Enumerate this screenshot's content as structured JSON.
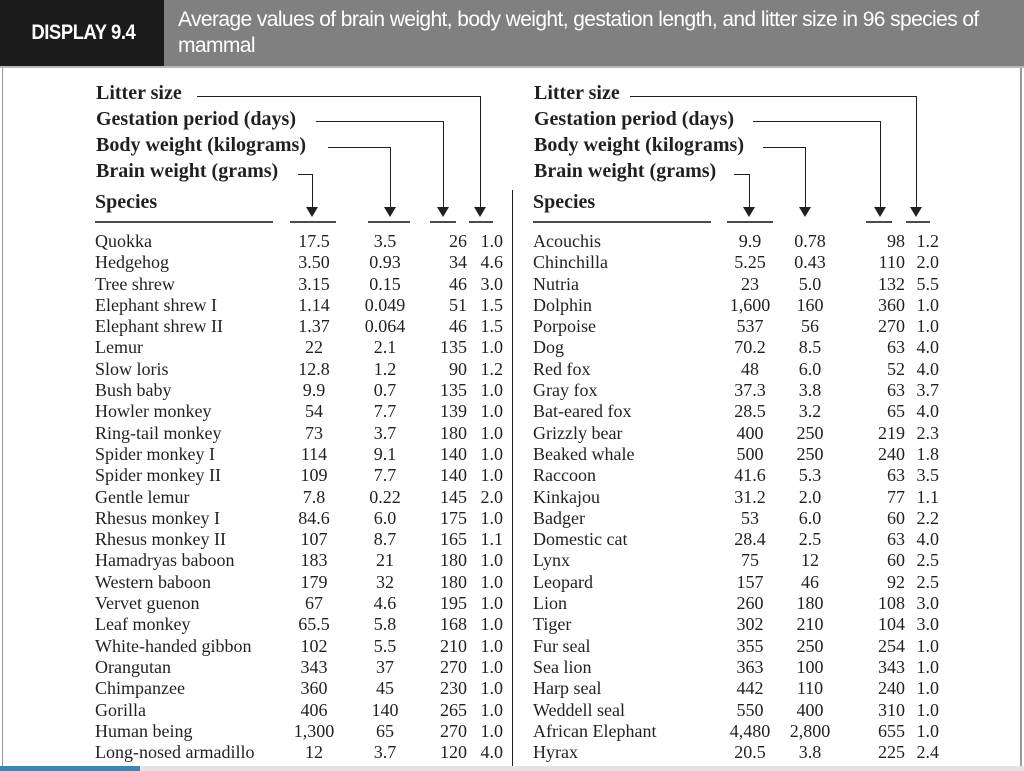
{
  "header": {
    "badge": "DISPLAY 9.4",
    "title": "Average values of brain weight, body weight, gestation length, and litter size in 96 species of mammal"
  },
  "legend": {
    "litter": "Litter size",
    "gestation": "Gestation period (days)",
    "body": "Body weight (kilograms)",
    "brain": "Brain weight (grams)",
    "species": "Species"
  },
  "left_rows": [
    [
      "Quokka",
      "17.5",
      "3.5",
      "26",
      "1.0"
    ],
    [
      "Hedgehog",
      "3.50",
      "0.93",
      "34",
      "4.6"
    ],
    [
      "Tree shrew",
      "3.15",
      "0.15",
      "46",
      "3.0"
    ],
    [
      "Elephant shrew I",
      "1.14",
      "0.049",
      "51",
      "1.5"
    ],
    [
      "Elephant shrew II",
      "1.37",
      "0.064",
      "46",
      "1.5"
    ],
    [
      "Lemur",
      "22",
      "2.1",
      "135",
      "1.0"
    ],
    [
      "Slow loris",
      "12.8",
      "1.2",
      "90",
      "1.2"
    ],
    [
      "Bush baby",
      "9.9",
      "0.7",
      "135",
      "1.0"
    ],
    [
      "Howler monkey",
      "54",
      "7.7",
      "139",
      "1.0"
    ],
    [
      "Ring-tail monkey",
      "73",
      "3.7",
      "180",
      "1.0"
    ],
    [
      "Spider monkey I",
      "114",
      "9.1",
      "140",
      "1.0"
    ],
    [
      "Spider monkey II",
      "109",
      "7.7",
      "140",
      "1.0"
    ],
    [
      "Gentle lemur",
      "7.8",
      "0.22",
      "145",
      "2.0"
    ],
    [
      "Rhesus monkey I",
      "84.6",
      "6.0",
      "175",
      "1.0"
    ],
    [
      "Rhesus monkey II",
      "107",
      "8.7",
      "165",
      "1.1"
    ],
    [
      "Hamadryas baboon",
      "183",
      "21",
      "180",
      "1.0"
    ],
    [
      "Western baboon",
      "179",
      "32",
      "180",
      "1.0"
    ],
    [
      "Vervet guenon",
      "67",
      "4.6",
      "195",
      "1.0"
    ],
    [
      "Leaf monkey",
      "65.5",
      "5.8",
      "168",
      "1.0"
    ],
    [
      "White-handed gibbon",
      "102",
      "5.5",
      "210",
      "1.0"
    ],
    [
      "Orangutan",
      "343",
      "37",
      "270",
      "1.0"
    ],
    [
      "Chimpanzee",
      "360",
      "45",
      "230",
      "1.0"
    ],
    [
      "Gorilla",
      "406",
      "140",
      "265",
      "1.0"
    ],
    [
      "Human being",
      "1,300",
      "65",
      "270",
      "1.0"
    ],
    [
      "Long-nosed armadillo",
      "12",
      "3.7",
      "120",
      "4.0"
    ]
  ],
  "right_rows": [
    [
      "Acouchis",
      "9.9",
      "0.78",
      "98",
      "1.2"
    ],
    [
      "Chinchilla",
      "5.25",
      "0.43",
      "110",
      "2.0"
    ],
    [
      "Nutria",
      "23",
      "5.0",
      "132",
      "5.5"
    ],
    [
      "Dolphin",
      "1,600",
      "160",
      "360",
      "1.0"
    ],
    [
      "Porpoise",
      "537",
      "56",
      "270",
      "1.0"
    ],
    [
      "Dog",
      "70.2",
      "8.5",
      "63",
      "4.0"
    ],
    [
      "Red fox",
      "48",
      "6.0",
      "52",
      "4.0"
    ],
    [
      "Gray fox",
      "37.3",
      "3.8",
      "63",
      "3.7"
    ],
    [
      "Bat-eared fox",
      "28.5",
      "3.2",
      "65",
      "4.0"
    ],
    [
      "Grizzly bear",
      "400",
      "250",
      "219",
      "2.3"
    ],
    [
      "Beaked whale",
      "500",
      "250",
      "240",
      "1.8"
    ],
    [
      "Raccoon",
      "41.6",
      "5.3",
      "63",
      "3.5"
    ],
    [
      "Kinkajou",
      "31.2",
      "2.0",
      "77",
      "1.1"
    ],
    [
      "Badger",
      "53",
      "6.0",
      "60",
      "2.2"
    ],
    [
      "Domestic cat",
      "28.4",
      "2.5",
      "63",
      "4.0"
    ],
    [
      "Lynx",
      "75",
      "12",
      "60",
      "2.5"
    ],
    [
      "Leopard",
      "157",
      "46",
      "92",
      "2.5"
    ],
    [
      "Lion",
      "260",
      "180",
      "108",
      "3.0"
    ],
    [
      "Tiger",
      "302",
      "210",
      "104",
      "3.0"
    ],
    [
      "Fur seal",
      "355",
      "250",
      "254",
      "1.0"
    ],
    [
      "Sea lion",
      "363",
      "100",
      "343",
      "1.0"
    ],
    [
      "Harp seal",
      "442",
      "110",
      "240",
      "1.0"
    ],
    [
      "Weddell seal",
      "550",
      "400",
      "310",
      "1.0"
    ],
    [
      "African Elephant",
      "4,480",
      "2,800",
      "655",
      "1.0"
    ],
    [
      "Hyrax",
      "20.5",
      "3.8",
      "225",
      "2.4"
    ]
  ]
}
